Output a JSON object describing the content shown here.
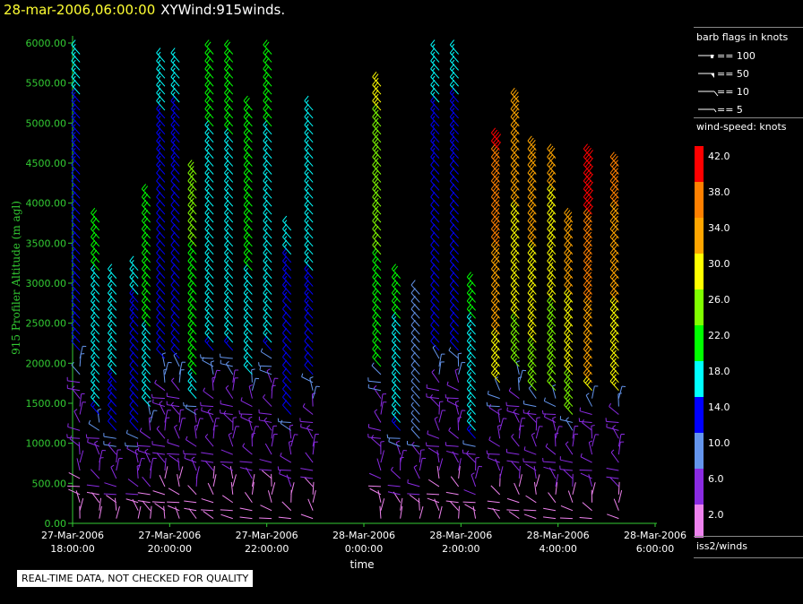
{
  "header": {
    "date": "28-mar-2006,06:00:00",
    "name": "XYWind:915winds."
  },
  "chart_data": {
    "type": "wind-barb",
    "ylabel": "915 Profiler Altitude (m agl)",
    "xlabel": "time",
    "ylim": [
      0,
      6000
    ],
    "yticks": [
      "0.00",
      "500.00",
      "1000.00",
      "1500.00",
      "2000.00",
      "2500.00",
      "3000.00",
      "3500.00",
      "4000.00",
      "4500.00",
      "5000.00",
      "5500.00",
      "6000.00"
    ],
    "xticks": [
      {
        "date": "27-Mar-2006",
        "time": "18:00:00"
      },
      {
        "date": "27-Mar-2006",
        "time": "20:00:00"
      },
      {
        "date": "27-Mar-2006",
        "time": "22:00:00"
      },
      {
        "date": "28-Mar-2006",
        "time": "0:00:00"
      },
      {
        "date": "28-Mar-2006",
        "time": "2:00:00"
      },
      {
        "date": "28-Mar-2006",
        "time": "4:00:00"
      },
      {
        "date": "28-Mar-2006",
        "time": "6:00:00"
      }
    ],
    "xrange_hours": [
      0,
      12
    ],
    "profiles": [
      {
        "t": 0.15,
        "top": 5950,
        "speed_mid": 14
      },
      {
        "t": 0.55,
        "top": 3800,
        "speed_mid": 18
      },
      {
        "t": 0.9,
        "top": 3100,
        "speed_mid": 16
      },
      {
        "t": 1.35,
        "top": 3200,
        "speed_mid": 14
      },
      {
        "t": 1.6,
        "top": 4100,
        "speed_mid": 20
      },
      {
        "t": 1.9,
        "top": 5800,
        "speed_mid": 14
      },
      {
        "t": 2.2,
        "top": 5850,
        "speed_mid": 14
      },
      {
        "t": 2.55,
        "top": 4400,
        "speed_mid": 22
      },
      {
        "t": 2.9,
        "top": 5950,
        "speed_mid": 18
      },
      {
        "t": 3.3,
        "top": 5900,
        "speed_mid": 18
      },
      {
        "t": 3.7,
        "top": 5250,
        "speed_mid": 20
      },
      {
        "t": 4.1,
        "top": 5950,
        "speed_mid": 18
      },
      {
        "t": 4.5,
        "top": 3700,
        "speed_mid": 14
      },
      {
        "t": 4.95,
        "top": 5200,
        "speed_mid": 16
      },
      {
        "t": 6.35,
        "top": 5500,
        "speed_mid": 24
      },
      {
        "t": 6.75,
        "top": 3100,
        "speed_mid": 18
      },
      {
        "t": 7.15,
        "top": 2900,
        "speed_mid": 10
      },
      {
        "t": 7.55,
        "top": 5900,
        "speed_mid": 14
      },
      {
        "t": 7.95,
        "top": 5950,
        "speed_mid": 14
      },
      {
        "t": 8.3,
        "top": 3000,
        "speed_mid": 18
      },
      {
        "t": 8.8,
        "top": 4800,
        "speed_mid": 34
      },
      {
        "t": 9.2,
        "top": 5350,
        "speed_mid": 30
      },
      {
        "t": 9.55,
        "top": 4700,
        "speed_mid": 30
      },
      {
        "t": 9.95,
        "top": 4600,
        "speed_mid": 28
      },
      {
        "t": 10.3,
        "top": 3850,
        "speed_mid": 30
      },
      {
        "t": 10.7,
        "top": 4600,
        "speed_mid": 36
      },
      {
        "t": 11.25,
        "top": 4550,
        "speed_mid": 32
      }
    ]
  },
  "legend": {
    "flags_title": "barb flags in knots",
    "flags": [
      "== 100",
      "== 50",
      "== 10",
      "== 5"
    ],
    "speed_title": "wind-speed: knots",
    "speed_bins": [
      {
        "label": "42.0",
        "color": "#ff0000"
      },
      {
        "label": "38.0",
        "color": "#ff8000"
      },
      {
        "label": "34.0",
        "color": "#ffa500"
      },
      {
        "label": "30.0",
        "color": "#ffff00"
      },
      {
        "label": "26.0",
        "color": "#80ff00"
      },
      {
        "label": "22.0",
        "color": "#00ff00"
      },
      {
        "label": "18.0",
        "color": "#00ffff"
      },
      {
        "label": "14.0",
        "color": "#0000ff"
      },
      {
        "label": "10.0",
        "color": "#6495ed"
      },
      {
        "label": "6.0",
        "color": "#8a2be2"
      },
      {
        "label": "2.0",
        "color": "#ee82ee"
      }
    ],
    "source": "iss2/winds"
  },
  "notice": "REAL-TIME DATA, NOT CHECKED FOR QUALITY",
  "colors": {
    "axis": "#33cc33",
    "tick_text": "#33cc33",
    "ylabel_text": "#33cc33"
  }
}
